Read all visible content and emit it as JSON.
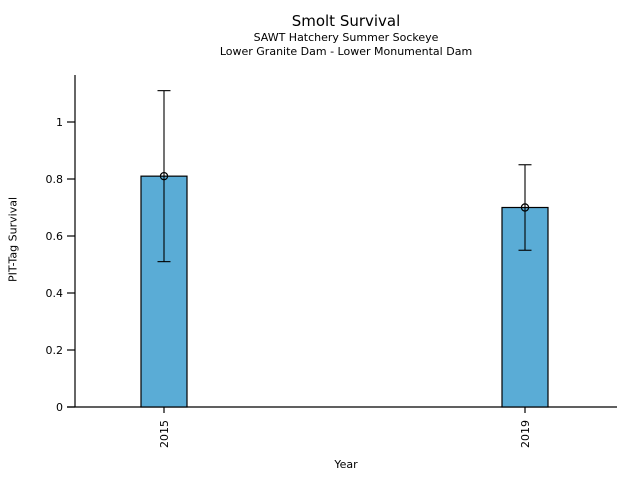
{
  "chart_data": {
    "type": "bar",
    "title": "Smolt Survival",
    "subtitle": [
      "SAWT Hatchery Summer Sockeye",
      "Lower Granite Dam - Lower Monumental Dam"
    ],
    "xlabel": "Year",
    "ylabel": "PIT-Tag Survival",
    "categories": [
      "2015",
      "2019"
    ],
    "values": [
      0.81,
      0.7
    ],
    "error_low": [
      0.51,
      0.55
    ],
    "error_high": [
      1.11,
      0.85
    ],
    "point_marker": "open-circle",
    "ytick_labels": [
      "0",
      "0.2",
      "0.4",
      "0.6",
      "0.8",
      "1"
    ],
    "ylim": [
      0,
      1.17
    ],
    "grid": false,
    "legend_position": "none",
    "bar_color": "#5AACD6",
    "bar_edge_color": "#000000",
    "errorbar_color": "#000000",
    "axis_color": "#000000",
    "text_color": "#000000"
  }
}
